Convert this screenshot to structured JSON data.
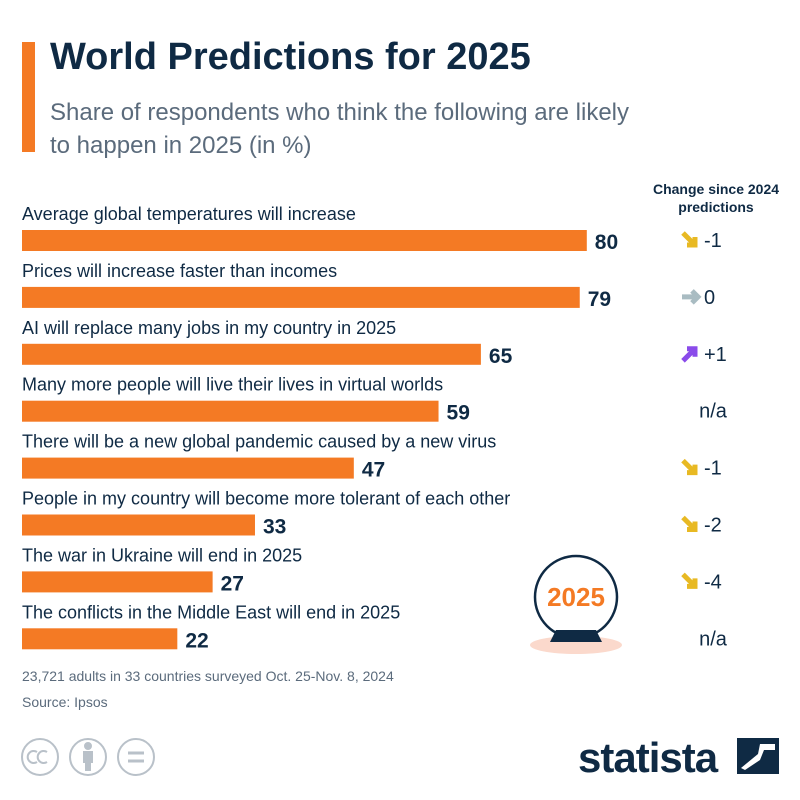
{
  "chart_data": {
    "type": "bar",
    "orientation": "horizontal",
    "title": "World Predictions for 2025",
    "subtitle": "Share of respondents who think the following are likely to happen in 2025 (in %)",
    "categories": [
      "Average global temperatures will increase",
      "Prices will increase faster than incomes",
      "AI will replace many jobs in my country in 2025",
      "Many more people will live their lives in virtual worlds",
      "There will be a new global pandemic caused by a new virus",
      "People in my country will become more tolerant of each other",
      "The war in Ukraine will end in 2025",
      "The conflicts in the Middle East will end in 2025"
    ],
    "values": [
      80,
      79,
      65,
      59,
      47,
      33,
      27,
      22
    ],
    "color": "#f47a24",
    "change_header": "Change since 2024 predictions",
    "changes": [
      "-1",
      "0",
      "+1",
      "n/a",
      "-1",
      "-2",
      "-4",
      "n/a"
    ]
  },
  "note": "23,721 adults in 33 countries surveyed Oct. 25-Nov. 8, 2024",
  "source": "Source: Ipsos",
  "badge": "2025",
  "brand": "statista"
}
